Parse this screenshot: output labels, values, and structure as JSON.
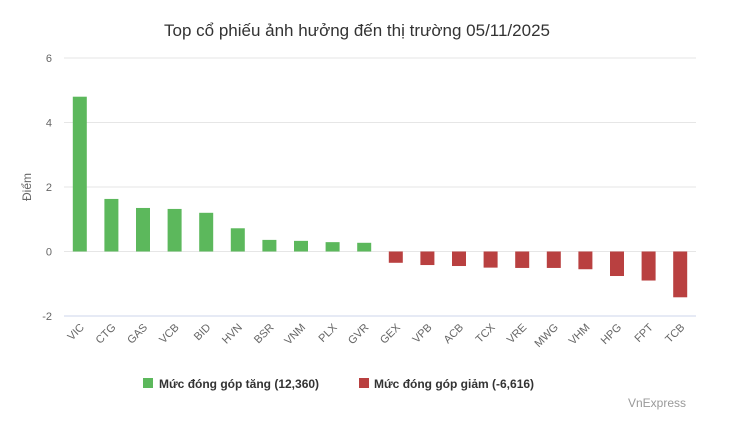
{
  "chart_data": {
    "type": "bar",
    "title": "Top cổ phiếu ảnh hưởng đến thị trường 05/11/2025",
    "ylabel": "Điểm",
    "xlabel": "",
    "ylim": [
      -2,
      6
    ],
    "yticks": [
      -2,
      0,
      2,
      4,
      6
    ],
    "categories": [
      "VIC",
      "CTG",
      "GAS",
      "VCB",
      "BID",
      "HVN",
      "BSR",
      "VNM",
      "PLX",
      "GVR",
      "GEX",
      "VPB",
      "ACB",
      "TCX",
      "VRE",
      "MWG",
      "VHM",
      "HPG",
      "FPT",
      "TCB"
    ],
    "values": [
      4.8,
      1.63,
      1.35,
      1.32,
      1.2,
      0.72,
      0.36,
      0.33,
      0.29,
      0.27,
      -0.35,
      -0.42,
      -0.45,
      -0.5,
      -0.51,
      -0.51,
      -0.55,
      -0.76,
      -0.9,
      -1.42
    ],
    "grid": true,
    "legend_position": "bottom",
    "series": [
      {
        "name": "Mức đóng góp tăng (12,360)",
        "color": "#5cb85c"
      },
      {
        "name": "Mức đóng góp giảm (-6,616)",
        "color": "#b94040"
      }
    ]
  },
  "credit": "VnExpress"
}
